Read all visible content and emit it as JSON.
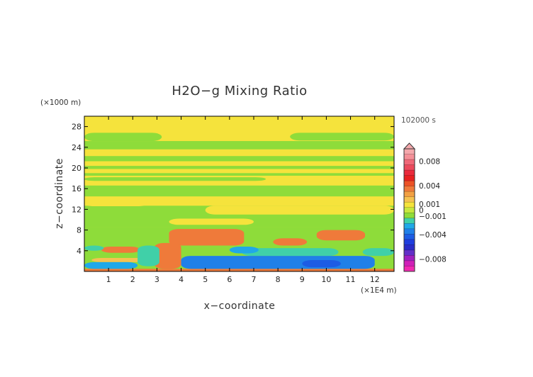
{
  "chart_data": {
    "type": "heatmap",
    "title": "H2O−g Mixing Ratio",
    "xlabel": "x−coordinate",
    "ylabel": "z−coordinate",
    "x_unit": "(×1E4 m)",
    "y_unit": "(×1000 m)",
    "time_label": "102000 s",
    "xlim": [
      0,
      12.8
    ],
    "ylim": [
      0,
      30
    ],
    "x_ticks": [
      1,
      2,
      3,
      4,
      5,
      6,
      7,
      8,
      9,
      10,
      11,
      12
    ],
    "y_ticks": [
      4,
      8,
      12,
      16,
      20,
      24,
      28
    ],
    "colorbar": {
      "ticks": [
        {
          "value": 0.008,
          "label": "0.008"
        },
        {
          "value": 0.004,
          "label": "0.004"
        },
        {
          "value": 0.001,
          "label": "0.001"
        },
        {
          "value": 0,
          "label": "0"
        },
        {
          "value": -0.001,
          "label": "−0.001"
        },
        {
          "value": -0.004,
          "label": "−0.004"
        },
        {
          "value": -0.008,
          "label": "−0.008"
        }
      ],
      "levels": [
        {
          "value": 0.0095,
          "color": "#f4a8ac"
        },
        {
          "value": 0.0085,
          "color": "#f49098"
        },
        {
          "value": 0.0075,
          "color": "#f06878"
        },
        {
          "value": 0.0065,
          "color": "#ec4a5c"
        },
        {
          "value": 0.0055,
          "color": "#ea2a3c"
        },
        {
          "value": 0.0045,
          "color": "#e82020"
        },
        {
          "value": 0.0035,
          "color": "#ec5226"
        },
        {
          "value": 0.0025,
          "color": "#ef7a3a"
        },
        {
          "value": 0.0017,
          "color": "#f2a043"
        },
        {
          "value": 0.0012,
          "color": "#f5c250"
        },
        {
          "value": 0.0008,
          "color": "#f5e33c"
        },
        {
          "value": 0.0003,
          "color": "#c8e83e"
        },
        {
          "value": -0.0003,
          "color": "#8edc3a"
        },
        {
          "value": -0.0008,
          "color": "#40d0a8"
        },
        {
          "value": -0.0015,
          "color": "#20a8e8"
        },
        {
          "value": -0.0025,
          "color": "#2080e8"
        },
        {
          "value": -0.0035,
          "color": "#1d5ce4"
        },
        {
          "value": -0.0045,
          "color": "#1f3ede"
        },
        {
          "value": -0.0055,
          "color": "#2a2cc8"
        },
        {
          "value": -0.0065,
          "color": "#6230c8"
        },
        {
          "value": -0.0075,
          "color": "#a020c0"
        },
        {
          "value": -0.0085,
          "color": "#d020b8"
        },
        {
          "value": -0.0095,
          "color": "#f028b0"
        }
      ]
    },
    "regions": [
      {
        "value": 0.0008,
        "x": [
          0.0,
          12.8
        ],
        "z": [
          0.0,
          30.0
        ]
      },
      {
        "value": -0.0003,
        "x": [
          0.0,
          12.8
        ],
        "z": [
          23.6,
          25.2
        ]
      },
      {
        "value": -0.0003,
        "x": [
          0.0,
          3.2
        ],
        "z": [
          25.2,
          26.8
        ]
      },
      {
        "value": -0.0003,
        "x": [
          8.5,
          12.8
        ],
        "z": [
          25.3,
          26.8
        ]
      },
      {
        "value": -0.0003,
        "x": [
          0.0,
          12.8
        ],
        "z": [
          21.3,
          22.3
        ]
      },
      {
        "value": -0.0003,
        "x": [
          0.0,
          12.8
        ],
        "z": [
          19.8,
          20.4
        ]
      },
      {
        "value": -0.0003,
        "x": [
          0.0,
          12.8
        ],
        "z": [
          18.5,
          19.0
        ]
      },
      {
        "value": -0.0003,
        "x": [
          0.0,
          7.5
        ],
        "z": [
          17.5,
          18.2
        ]
      },
      {
        "value": -0.0003,
        "x": [
          0.0,
          12.8
        ],
        "z": [
          14.5,
          16.6
        ]
      },
      {
        "value": -0.0003,
        "x": [
          0.0,
          12.8
        ],
        "z": [
          8.5,
          12.7
        ]
      },
      {
        "value": 0.0008,
        "x": [
          0.0,
          2.6
        ],
        "z": [
          12.6,
          13.6
        ]
      },
      {
        "value": 0.0008,
        "x": [
          5.0,
          12.8
        ],
        "z": [
          11.0,
          12.7
        ]
      },
      {
        "value": 0.0008,
        "x": [
          3.5,
          7.0
        ],
        "z": [
          9.0,
          10.2
        ]
      },
      {
        "value": -0.0003,
        "x": [
          0.0,
          12.8
        ],
        "z": [
          0.0,
          8.5
        ]
      },
      {
        "value": 0.0025,
        "x": [
          3.5,
          6.6
        ],
        "z": [
          5.0,
          8.2
        ]
      },
      {
        "value": 0.0025,
        "x": [
          2.9,
          4.0
        ],
        "z": [
          0.5,
          5.5
        ]
      },
      {
        "value": 0.0025,
        "x": [
          9.6,
          11.6
        ],
        "z": [
          6.0,
          8.0
        ]
      },
      {
        "value": 0.0025,
        "x": [
          7.8,
          9.2
        ],
        "z": [
          5.0,
          6.4
        ]
      },
      {
        "value": 0.0025,
        "x": [
          0.7,
          2.3
        ],
        "z": [
          3.6,
          4.8
        ]
      },
      {
        "value": 0.0025,
        "x": [
          0.0,
          12.8
        ],
        "z": [
          0.0,
          0.5
        ]
      },
      {
        "value": 0.0012,
        "x": [
          0.3,
          2.7
        ],
        "z": [
          1.8,
          2.6
        ]
      },
      {
        "value": -0.0008,
        "x": [
          0.0,
          0.8
        ],
        "z": [
          4.0,
          5.0
        ]
      },
      {
        "value": -0.0008,
        "x": [
          2.2,
          3.1
        ],
        "z": [
          1.0,
          5.0
        ]
      },
      {
        "value": -0.0008,
        "x": [
          6.5,
          10.5
        ],
        "z": [
          3.0,
          4.5
        ]
      },
      {
        "value": -0.0008,
        "x": [
          11.5,
          12.8
        ],
        "z": [
          3.0,
          4.5
        ]
      },
      {
        "value": -0.0015,
        "x": [
          0.0,
          2.2
        ],
        "z": [
          0.5,
          1.8
        ]
      },
      {
        "value": -0.0025,
        "x": [
          4.0,
          12.0
        ],
        "z": [
          0.5,
          3.0
        ]
      },
      {
        "value": -0.0015,
        "x": [
          6.0,
          7.2
        ],
        "z": [
          3.5,
          4.8
        ]
      },
      {
        "value": -0.0035,
        "x": [
          9.0,
          10.6
        ],
        "z": [
          0.8,
          2.2
        ]
      }
    ]
  }
}
